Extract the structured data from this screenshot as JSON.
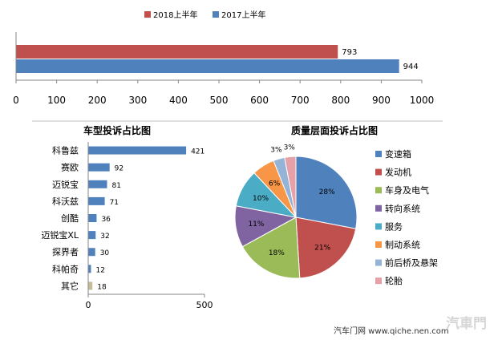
{
  "chart_data": [
    {
      "type": "bar",
      "orientation": "horizontal",
      "title": "",
      "categories": [
        ""
      ],
      "series": [
        {
          "name": "2018上半年",
          "color": "#c0504d",
          "values": [
            793
          ]
        },
        {
          "name": "2017上半年",
          "color": "#4f81bd",
          "values": [
            944
          ]
        }
      ],
      "xlim": [
        0,
        1000
      ],
      "xticks": [
        "0",
        "100",
        "200",
        "300",
        "400",
        "500",
        "600",
        "700",
        "800",
        "900",
        "1000"
      ],
      "value_labels": [
        "793",
        "944"
      ],
      "legend": "top"
    },
    {
      "type": "bar",
      "orientation": "horizontal",
      "title": "车型投诉占比图",
      "categories": [
        "科鲁兹",
        "赛欧",
        "迈锐宝",
        "科沃兹",
        "创酷",
        "迈锐宝XL",
        "探界者",
        "科帕奇",
        "其它"
      ],
      "values": [
        421,
        92,
        81,
        71,
        36,
        32,
        30,
        12,
        18
      ],
      "value_labels": [
        "421",
        "92",
        "81",
        "71",
        "36",
        "32",
        "30",
        "12",
        "18"
      ],
      "colors": [
        "#4f81bd",
        "#4f81bd",
        "#4f81bd",
        "#4f81bd",
        "#4f81bd",
        "#4f81bd",
        "#4f81bd",
        "#4f81bd",
        "#c4bd97"
      ],
      "xlim": [
        0,
        500
      ],
      "xticks": [
        "0",
        "500"
      ]
    },
    {
      "type": "pie",
      "title": "质量层面投诉占比图",
      "labels": [
        "变速箱",
        "发动机",
        "车身及电气",
        "转向系统",
        "服务",
        "制动系统",
        "前后桥及悬架",
        "轮胎"
      ],
      "values": [
        28,
        21,
        18,
        11,
        10,
        6,
        3,
        3
      ],
      "value_labels": [
        "28%",
        "21%",
        "18%",
        "11%",
        "10%",
        "6%",
        "3%",
        "3%"
      ],
      "colors": [
        "#4f81bd",
        "#c0504d",
        "#9bbb59",
        "#8064a2",
        "#4bacc6",
        "#f79646",
        "#95b3d7",
        "#e6a0a7"
      ],
      "legend": "right"
    }
  ],
  "watermark": {
    "site_text": "汽车门网 www.qiche.nen.com",
    "logo_text": "汽車門"
  }
}
